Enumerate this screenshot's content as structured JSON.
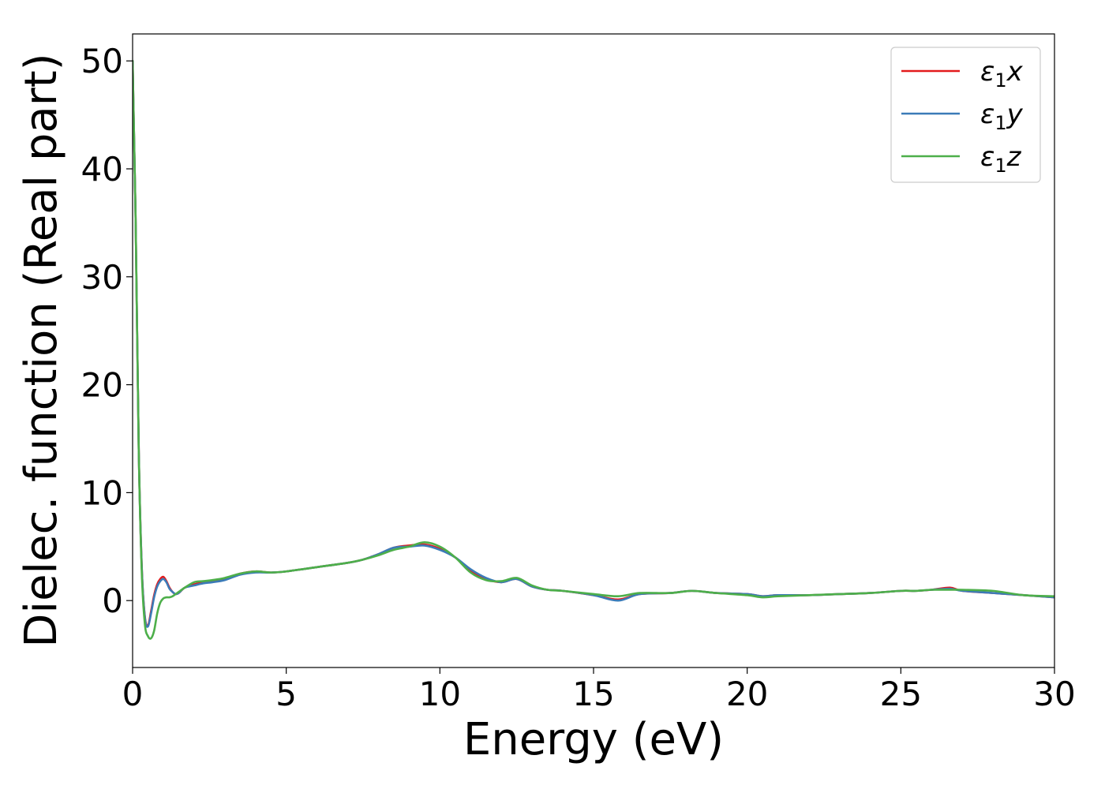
{
  "chart_data": {
    "type": "line",
    "title": "",
    "xlabel": "Energy (eV)",
    "ylabel": "Dielec. function (Real part)",
    "xlim": [
      0,
      30
    ],
    "ylim": [
      -6.2,
      52.5
    ],
    "xticks": [
      0,
      5,
      10,
      15,
      20,
      25,
      30
    ],
    "yticks": [
      0,
      10,
      20,
      30,
      40,
      50
    ],
    "grid": false,
    "legend_position": "top-right",
    "series": [
      {
        "name": "ε₁x",
        "legend": {
          "symbol": "ε",
          "sub": "1",
          "axis": "x"
        },
        "color": "#e31a1c",
        "x": [
          0,
          0.1,
          0.2,
          0.3,
          0.4,
          0.5,
          0.6,
          0.7,
          0.8,
          0.9,
          1.0,
          1.1,
          1.2,
          1.3,
          1.4,
          1.5,
          1.7,
          2.0,
          2.3,
          2.6,
          3.0,
          3.5,
          4.0,
          4.5,
          5.0,
          6.0,
          7.0,
          7.5,
          8.0,
          8.5,
          9.0,
          9.5,
          10.0,
          10.5,
          11.0,
          11.5,
          12.0,
          12.5,
          13.0,
          13.5,
          14.0,
          15.0,
          15.8,
          16.5,
          17.5,
          18.2,
          19.0,
          20.0,
          20.5,
          21.0,
          22.0,
          23.0,
          24.0,
          25.0,
          25.5,
          26.0,
          26.6,
          27.0,
          28.0,
          29.0,
          30.0
        ],
        "values": [
          50,
          35,
          14,
          3,
          -1.5,
          -2.3,
          -1.0,
          0.5,
          1.5,
          2.0,
          2.2,
          1.8,
          1.2,
          0.8,
          0.6,
          0.7,
          1.2,
          1.5,
          1.7,
          1.8,
          2.0,
          2.5,
          2.7,
          2.6,
          2.7,
          3.1,
          3.5,
          3.8,
          4.3,
          4.9,
          5.1,
          5.2,
          4.8,
          4.0,
          2.8,
          2.0,
          1.7,
          2.0,
          1.3,
          1.0,
          0.9,
          0.5,
          0.1,
          0.6,
          0.7,
          0.9,
          0.7,
          0.6,
          0.4,
          0.5,
          0.5,
          0.6,
          0.7,
          0.9,
          0.9,
          1.0,
          1.2,
          0.9,
          0.7,
          0.5,
          0.3
        ]
      },
      {
        "name": "ε₁y",
        "legend": {
          "symbol": "ε",
          "sub": "1",
          "axis": "y"
        },
        "color": "#3b7bb8",
        "x": [
          0,
          0.1,
          0.2,
          0.3,
          0.4,
          0.5,
          0.6,
          0.7,
          0.8,
          0.9,
          1.0,
          1.1,
          1.2,
          1.3,
          1.4,
          1.5,
          1.7,
          2.0,
          2.3,
          2.6,
          3.0,
          3.5,
          4.0,
          4.5,
          5.0,
          6.0,
          7.0,
          7.5,
          8.0,
          8.5,
          9.0,
          9.5,
          10.0,
          10.5,
          11.0,
          11.5,
          12.0,
          12.5,
          13.0,
          13.5,
          14.0,
          15.0,
          15.8,
          16.5,
          17.5,
          18.2,
          19.0,
          20.0,
          20.5,
          21.0,
          22.0,
          23.0,
          24.0,
          25.0,
          25.5,
          26.0,
          26.6,
          27.0,
          28.0,
          29.0,
          30.0
        ],
        "values": [
          50,
          35,
          14,
          3,
          -1.6,
          -2.4,
          -1.2,
          0.3,
          1.3,
          1.8,
          2.0,
          1.7,
          1.1,
          0.8,
          0.6,
          0.7,
          1.2,
          1.4,
          1.6,
          1.7,
          1.9,
          2.4,
          2.6,
          2.6,
          2.7,
          3.1,
          3.5,
          3.8,
          4.3,
          4.9,
          5.0,
          5.1,
          4.7,
          4.0,
          2.9,
          2.1,
          1.7,
          2.0,
          1.3,
          1.0,
          0.9,
          0.5,
          0.0,
          0.6,
          0.7,
          0.9,
          0.7,
          0.6,
          0.4,
          0.5,
          0.5,
          0.6,
          0.7,
          0.9,
          0.9,
          1.0,
          1.1,
          0.9,
          0.7,
          0.5,
          0.3
        ]
      },
      {
        "name": "ε₁z",
        "legend": {
          "symbol": "ε",
          "sub": "1",
          "axis": "z"
        },
        "color": "#4daf4a",
        "x": [
          0,
          0.1,
          0.2,
          0.3,
          0.4,
          0.5,
          0.6,
          0.7,
          0.8,
          0.9,
          1.0,
          1.1,
          1.2,
          1.3,
          1.4,
          1.5,
          1.7,
          2.0,
          2.3,
          2.6,
          3.0,
          3.5,
          4.0,
          4.5,
          5.0,
          6.0,
          7.0,
          7.5,
          8.0,
          8.5,
          9.0,
          9.5,
          10.0,
          10.5,
          11.0,
          11.5,
          12.0,
          12.5,
          13.0,
          13.5,
          14.0,
          15.0,
          15.8,
          16.5,
          17.5,
          18.2,
          19.0,
          20.0,
          20.5,
          21.0,
          22.0,
          23.0,
          24.0,
          25.0,
          25.5,
          26.0,
          26.6,
          27.0,
          28.0,
          29.0,
          30.0
        ],
        "values": [
          50,
          35,
          14,
          2.5,
          -2.2,
          -3.3,
          -3.5,
          -2.8,
          -1.2,
          -0.2,
          0.2,
          0.3,
          0.3,
          0.4,
          0.6,
          0.8,
          1.2,
          1.7,
          1.8,
          1.9,
          2.1,
          2.5,
          2.7,
          2.6,
          2.7,
          3.1,
          3.5,
          3.8,
          4.2,
          4.7,
          5.0,
          5.4,
          5.0,
          4.0,
          2.6,
          1.9,
          1.8,
          2.1,
          1.4,
          1.0,
          0.9,
          0.6,
          0.4,
          0.7,
          0.7,
          0.9,
          0.7,
          0.5,
          0.3,
          0.4,
          0.5,
          0.6,
          0.7,
          0.9,
          0.9,
          1.0,
          1.0,
          1.0,
          0.9,
          0.5,
          0.4
        ]
      }
    ]
  }
}
